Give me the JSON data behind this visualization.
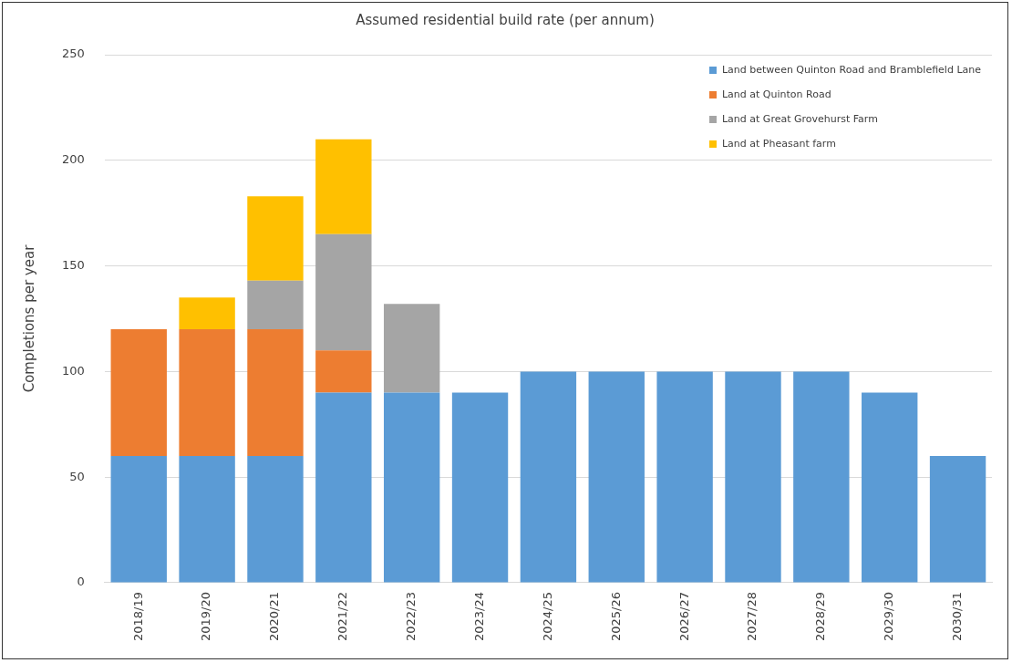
{
  "chart_data": {
    "type": "bar",
    "title": "Assumed residential build rate (per annum)",
    "ylabel": "Completions per year",
    "categories": [
      "2018/19",
      "2019/20",
      "2020/21",
      "2021/22",
      "2022/23",
      "2023/24",
      "2024/25",
      "2025/26",
      "2026/27",
      "2027/28",
      "2028/29",
      "2029/30",
      "2030/31"
    ],
    "series": [
      {
        "name": "Land between Quinton Road and Bramblefield Lane",
        "color": "#5b9bd5",
        "values": [
          60,
          60,
          60,
          90,
          90,
          90,
          100,
          100,
          100,
          100,
          100,
          90,
          60
        ]
      },
      {
        "name": "Land at Quinton Road",
        "color": "#ed7d31",
        "values": [
          60,
          60,
          60,
          20,
          null,
          null,
          null,
          null,
          null,
          null,
          null,
          null,
          null
        ]
      },
      {
        "name": "Land at Great Grovehurst Farm",
        "color": "#a5a5a5",
        "values": [
          null,
          null,
          23,
          55,
          42,
          null,
          null,
          null,
          null,
          null,
          null,
          null,
          null
        ]
      },
      {
        "name": "Land at Pheasant farm",
        "color": "#ffc000",
        "values": [
          null,
          15,
          40,
          45,
          null,
          null,
          null,
          null,
          null,
          null,
          null,
          null,
          null
        ]
      }
    ],
    "stacked": true,
    "ylim": [
      0,
      250
    ],
    "yticks": [
      0,
      50,
      100,
      150,
      200,
      250
    ],
    "grid": "y",
    "legend": "top right"
  }
}
